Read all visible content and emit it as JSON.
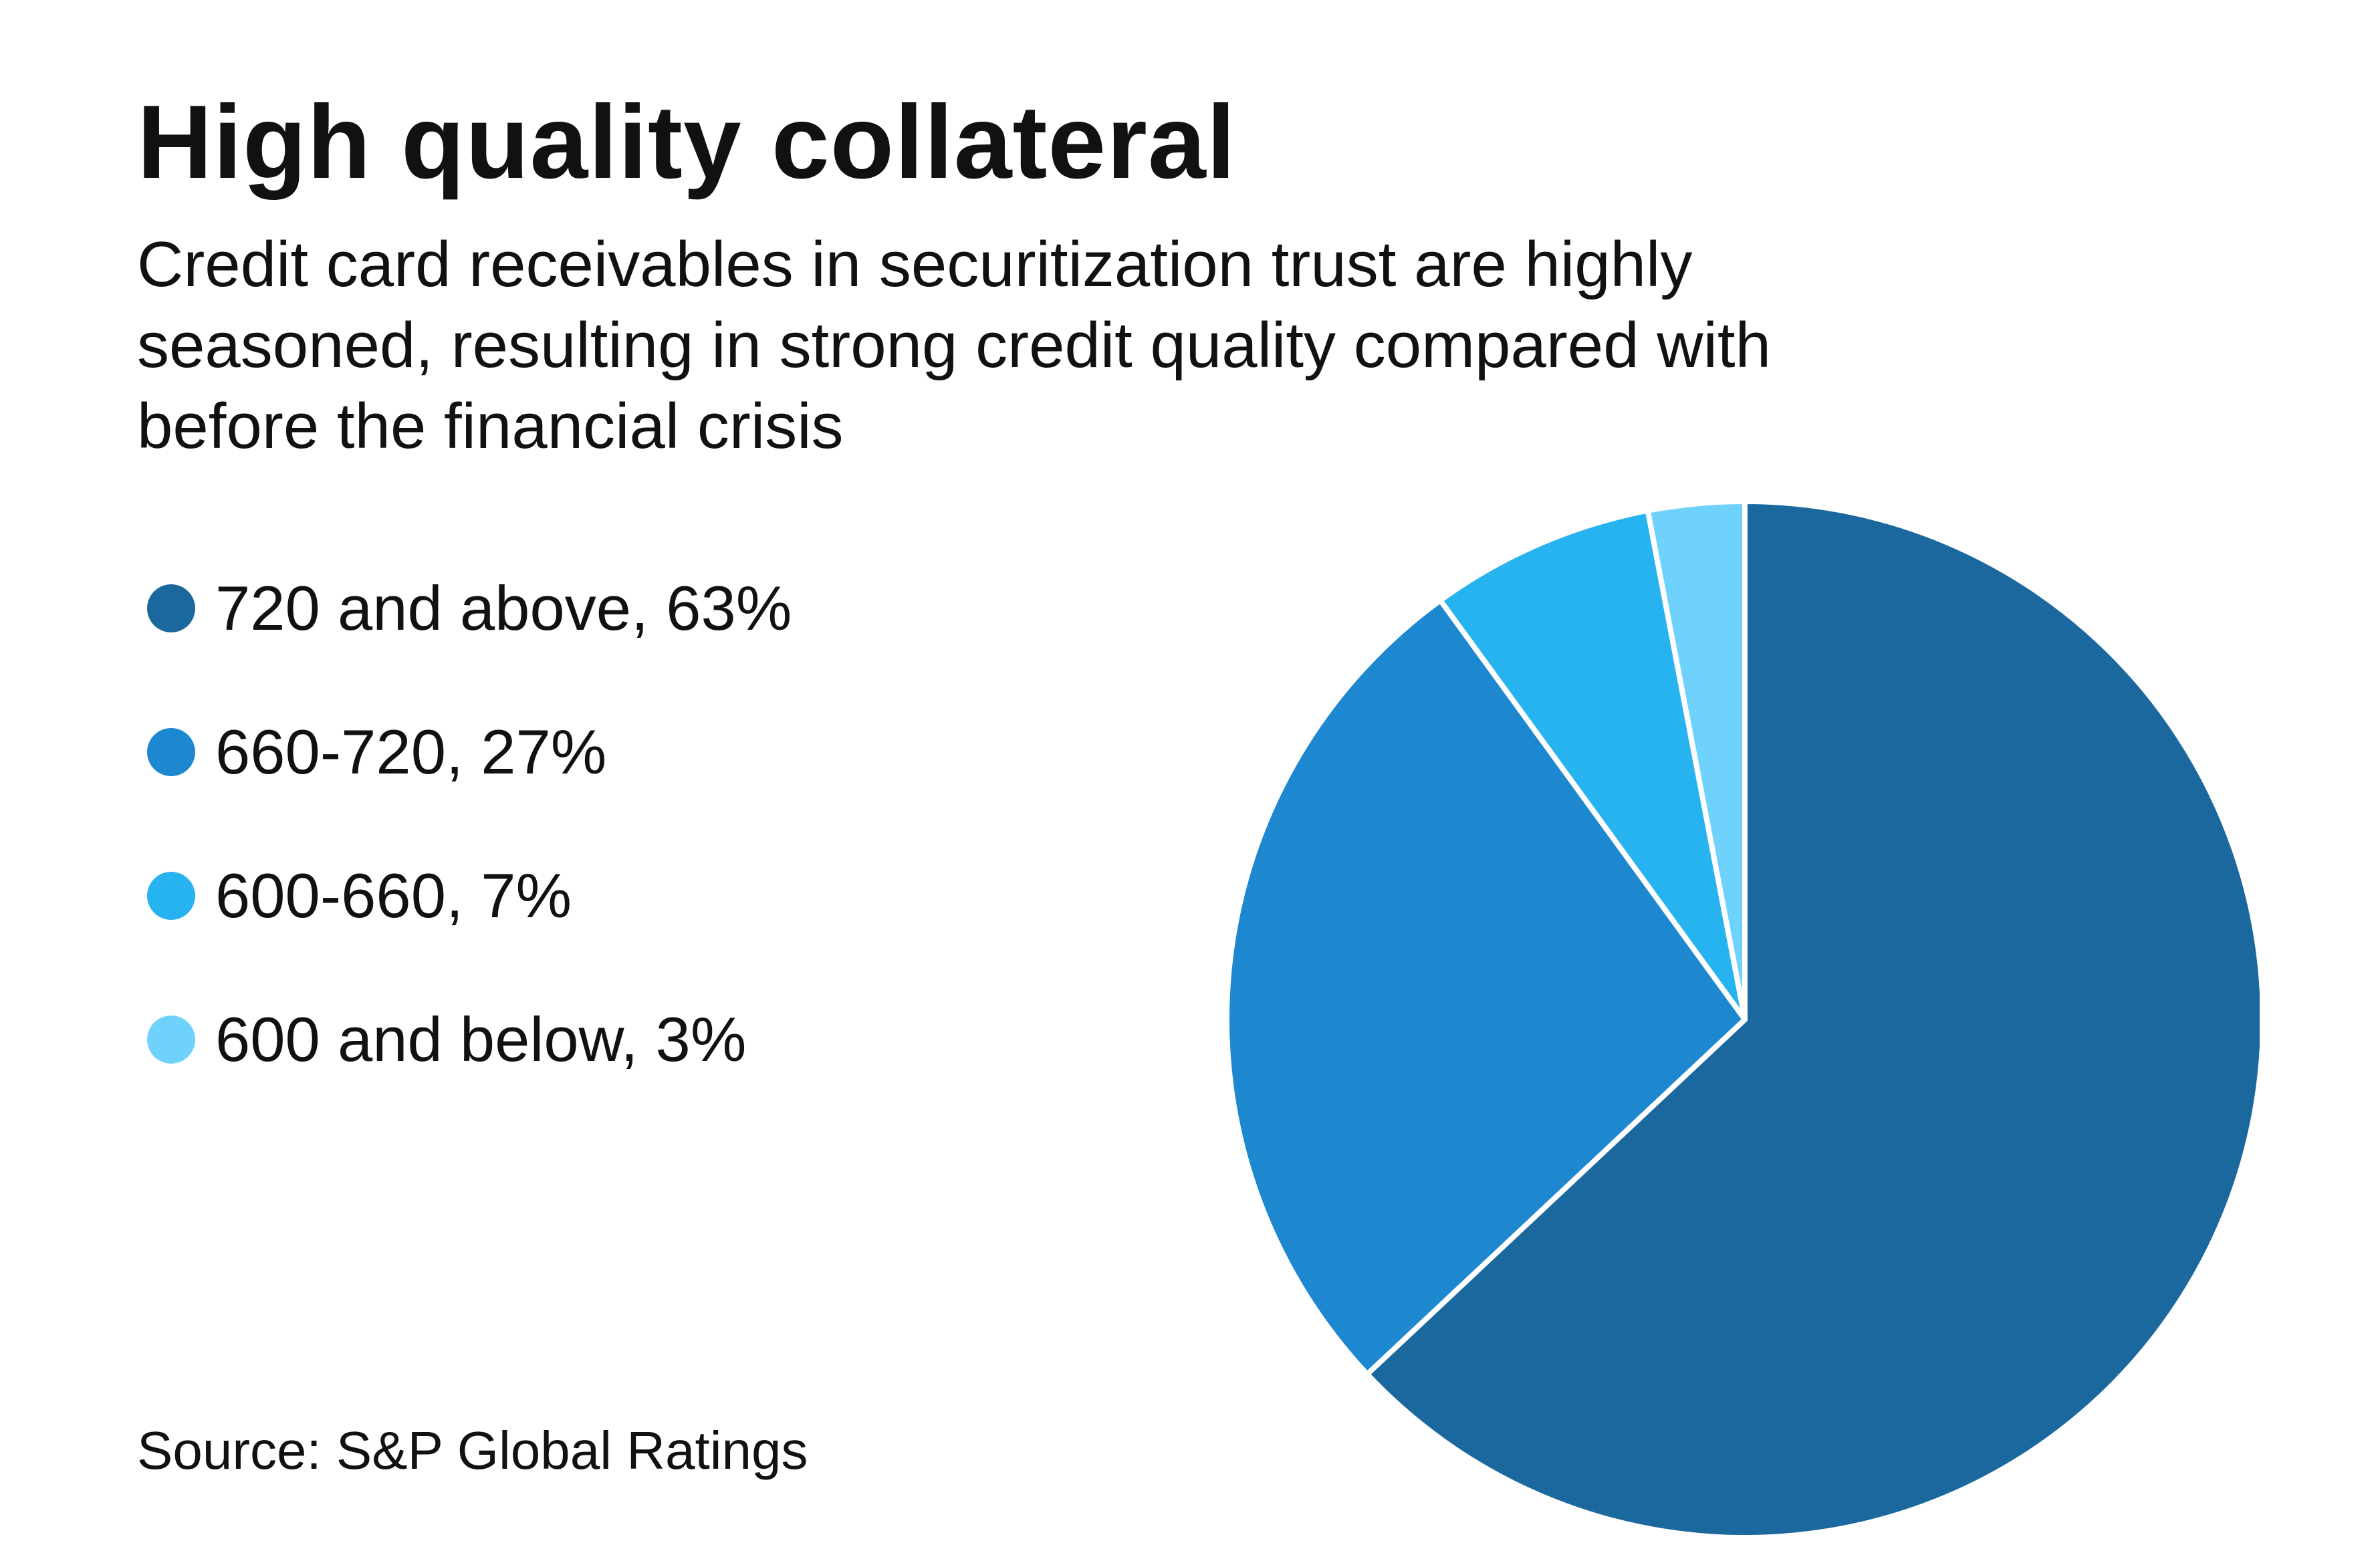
{
  "colors": {
    "background": "#ffffff",
    "text": "#111111",
    "slice_separator": "#ffffff"
  },
  "chart_data": {
    "type": "pie",
    "title": "High quality collateral",
    "subtitle": "Credit card receivables in securitization trust are highly\nseasoned, resulting in strong credit quality compared with\nbefore the financial crisis",
    "source": "Source: S&P Global Ratings",
    "legend_position": "left",
    "start_angle_deg": 0,
    "direction": "clockwise",
    "slices": [
      {
        "label": "720 and above",
        "value": 63,
        "legend_text": "720 and above, 63%",
        "color": "#1b689e"
      },
      {
        "label": "660-720",
        "value": 27,
        "legend_text": "660-720, 27%",
        "color": "#1d87d0"
      },
      {
        "label": "600-660",
        "value": 7,
        "legend_text": "600-660, 7%",
        "color": "#27b3ef"
      },
      {
        "label": "600 and below",
        "value": 3,
        "legend_text": "600 and below, 3%",
        "color": "#6fd2fd"
      }
    ]
  }
}
